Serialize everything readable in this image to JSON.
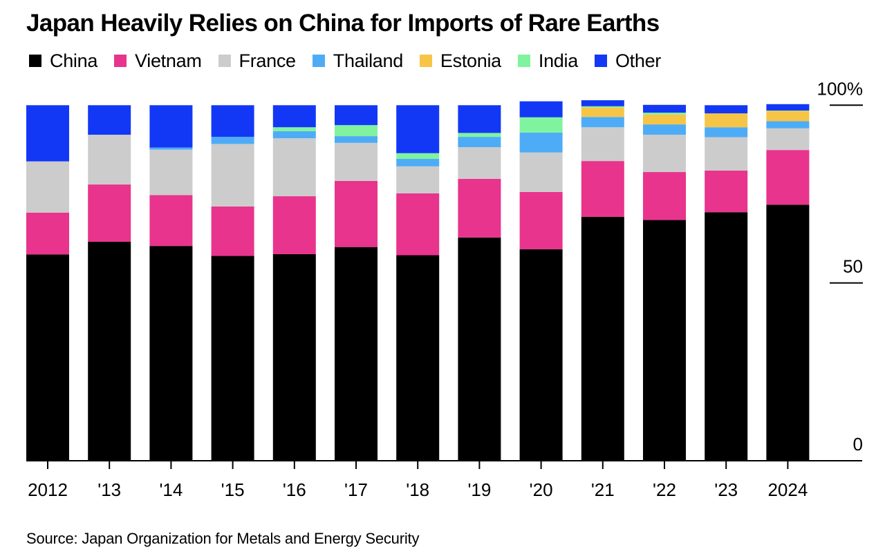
{
  "chart_data": {
    "type": "bar",
    "stacked": true,
    "title": "Japan Heavily Relies on China for Imports of Rare Earths",
    "xlabel": "",
    "ylabel": "",
    "ylim": [
      0,
      100
    ],
    "y_ticks": [
      {
        "value": 0,
        "label": "0"
      },
      {
        "value": 50,
        "label": "50"
      },
      {
        "value": 100,
        "label": "100%"
      }
    ],
    "y_axis_position": "right",
    "legend_position": "top-left",
    "categories": [
      "2012",
      "'13",
      "'14",
      "'15",
      "'16",
      "'17",
      "'18",
      "'19",
      "'20",
      "'21",
      "'22",
      "'23",
      "2024"
    ],
    "series": [
      {
        "name": "China",
        "color": "#000000",
        "values": [
          58.0,
          61.6,
          60.4,
          57.6,
          58.1,
          60.1,
          57.8,
          62.8,
          59.5,
          68.6,
          67.7,
          69.9,
          72.0
        ]
      },
      {
        "name": "Vietnam",
        "color": "#e8348c",
        "values": [
          11.8,
          16.1,
          14.3,
          13.9,
          16.3,
          18.6,
          17.4,
          16.5,
          16.1,
          15.7,
          13.5,
          11.7,
          15.4
        ]
      },
      {
        "name": "France",
        "color": "#cccccc",
        "values": [
          14.4,
          14.0,
          12.8,
          17.6,
          16.3,
          10.7,
          7.6,
          8.9,
          11.1,
          9.5,
          10.5,
          9.4,
          6.1
        ]
      },
      {
        "name": "Thailand",
        "color": "#4eacf7",
        "values": [
          0,
          0,
          0.6,
          2.0,
          2.0,
          1.9,
          2.1,
          2.9,
          5.6,
          2.9,
          2.9,
          2.8,
          2.0
        ]
      },
      {
        "name": "Estonia",
        "color": "#f7c546",
        "values": [
          0,
          0,
          0,
          0,
          0,
          0,
          0,
          0,
          0,
          2.7,
          2.8,
          3.9,
          2.9
        ]
      },
      {
        "name": "India",
        "color": "#80f39f",
        "values": [
          0,
          0,
          0,
          0,
          1.1,
          3.1,
          1.6,
          1.1,
          4.3,
          0.3,
          0.5,
          0,
          0.1
        ]
      },
      {
        "name": "Other",
        "color": "#1338f5",
        "values": [
          15.8,
          8.3,
          11.9,
          8.9,
          6.2,
          5.6,
          13.5,
          7.8,
          4.5,
          1.7,
          2.2,
          2.3,
          1.8
        ]
      }
    ],
    "source": "Source: Japan Organization for Metals and Energy Security"
  }
}
